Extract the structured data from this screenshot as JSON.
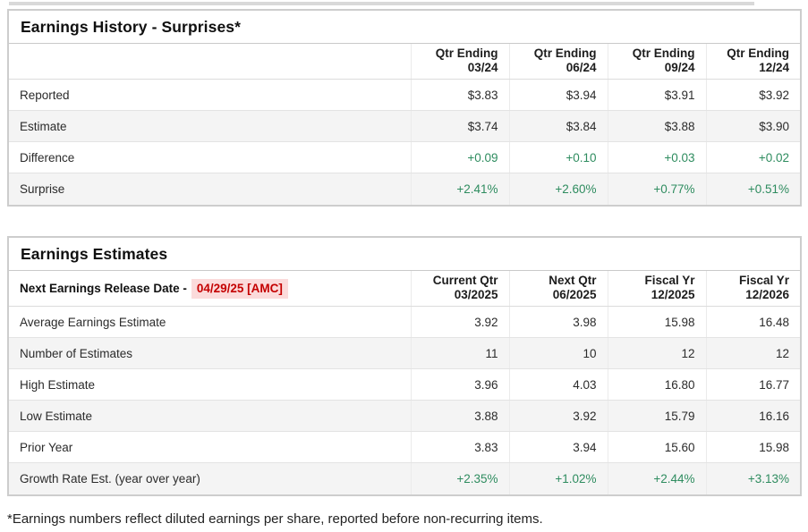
{
  "colors": {
    "positive_green": "#2e8c5f",
    "alert_red": "#c40000",
    "alert_red_bg": "#fbdbdb"
  },
  "history": {
    "title": "Earnings History - Surprises*",
    "columns": [
      {
        "line1": "Qtr Ending",
        "line2": "03/24"
      },
      {
        "line1": "Qtr Ending",
        "line2": "06/24"
      },
      {
        "line1": "Qtr Ending",
        "line2": "09/24"
      },
      {
        "line1": "Qtr Ending",
        "line2": "12/24"
      }
    ],
    "rows": [
      {
        "label": "Reported",
        "values": [
          "$3.83",
          "$3.94",
          "$3.91",
          "$3.92"
        ],
        "green": false
      },
      {
        "label": "Estimate",
        "values": [
          "$3.74",
          "$3.84",
          "$3.88",
          "$3.90"
        ],
        "green": false
      },
      {
        "label": "Difference",
        "values": [
          "+0.09",
          "+0.10",
          "+0.03",
          "+0.02"
        ],
        "green": true
      },
      {
        "label": "Surprise",
        "values": [
          "+2.41%",
          "+2.60%",
          "+0.77%",
          "+0.51%"
        ],
        "green": true
      }
    ]
  },
  "estimates": {
    "title": "Earnings Estimates",
    "release_label": "Next Earnings Release Date -",
    "release_date": "04/29/25 [AMC]",
    "columns": [
      {
        "line1": "Current Qtr",
        "line2": "03/2025"
      },
      {
        "line1": "Next Qtr",
        "line2": "06/2025"
      },
      {
        "line1": "Fiscal Yr",
        "line2": "12/2025"
      },
      {
        "line1": "Fiscal Yr",
        "line2": "12/2026"
      }
    ],
    "rows": [
      {
        "label": "Average Earnings Estimate",
        "values": [
          "3.92",
          "3.98",
          "15.98",
          "16.48"
        ],
        "green": false
      },
      {
        "label": "Number of Estimates",
        "values": [
          "11",
          "10",
          "12",
          "12"
        ],
        "green": false
      },
      {
        "label": "High Estimate",
        "values": [
          "3.96",
          "4.03",
          "16.80",
          "16.77"
        ],
        "green": false
      },
      {
        "label": "Low Estimate",
        "values": [
          "3.88",
          "3.92",
          "15.79",
          "16.16"
        ],
        "green": false
      },
      {
        "label": "Prior Year",
        "values": [
          "3.83",
          "3.94",
          "15.60",
          "15.98"
        ],
        "green": false
      },
      {
        "label": "Growth Rate Est. (year over year)",
        "values": [
          "+2.35%",
          "+1.02%",
          "+2.44%",
          "+3.13%"
        ],
        "green": true
      }
    ]
  },
  "footnote": "*Earnings numbers reflect diluted earnings per share, reported before non-recurring items."
}
